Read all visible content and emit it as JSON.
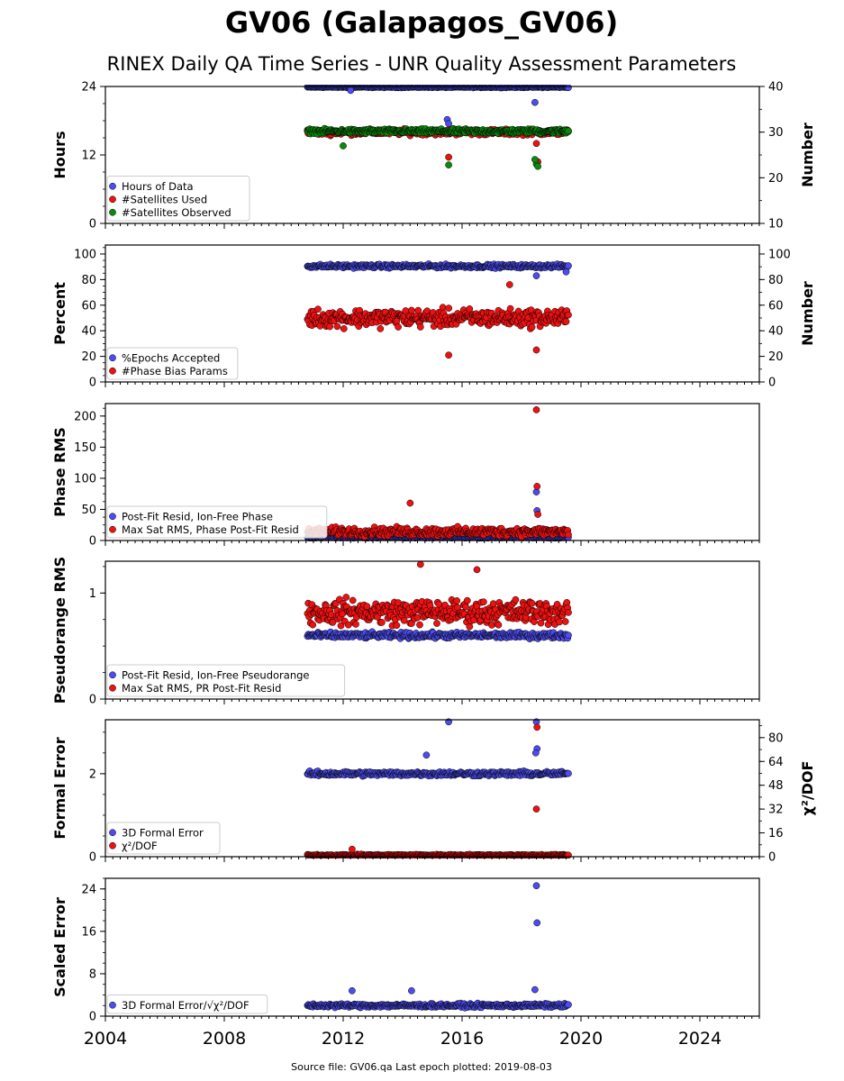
{
  "title": "GV06 (Galapagos_GV06)",
  "subtitle": "RINEX Daily QA Time Series - UNR Quality Assessment Parameters",
  "footer": "Source file: GV06.qa Last epoch plotted: 2019-08-03",
  "colors": {
    "blue": "#4c4cf0",
    "red": "#ee1111",
    "green": "#0a8a0a",
    "edge": "#000000"
  },
  "chart_data": [
    {
      "type": "scatter",
      "ylabel": "Hours",
      "ylabel_right": "Number",
      "xlim": [
        2004,
        2026
      ],
      "ylim": [
        0,
        24
      ],
      "yticks": [
        0,
        12,
        24
      ],
      "y2lim": [
        10,
        40
      ],
      "y2ticks": [
        10,
        20,
        30,
        40
      ],
      "xticks": [
        "2004",
        "2008",
        "2012",
        "2016",
        "2020",
        "2024"
      ],
      "legend_position": "lower-left",
      "series": [
        {
          "name": "Hours of Data",
          "color": "blue",
          "axis": "left",
          "band": {
            "start": 2010.8,
            "end": 2019.58,
            "base": 23.9,
            "jitter": 0.15
          },
          "outliers": [
            [
              2012.25,
              23.3
            ],
            [
              2015.5,
              18.2
            ],
            [
              2015.55,
              17.5
            ],
            [
              2018.45,
              21.2
            ],
            [
              2018.5,
              16.0
            ]
          ]
        },
        {
          "name": "#Satellites Used",
          "color": "red",
          "axis": "right",
          "band": {
            "start": 2010.8,
            "end": 2019.58,
            "base": 30.0,
            "jitter": 0.9
          },
          "outliers": [
            [
              2015.55,
              24.5
            ],
            [
              2018.5,
              27.5
            ],
            [
              2018.55,
              23.5
            ]
          ]
        },
        {
          "name": "#Satellites Observed",
          "color": "green",
          "axis": "right",
          "band": {
            "start": 2010.8,
            "end": 2019.58,
            "base": 30.2,
            "jitter": 0.7
          },
          "outliers": [
            [
              2012.0,
              27.0
            ],
            [
              2015.55,
              22.8
            ],
            [
              2018.5,
              23.0
            ],
            [
              2018.55,
              22.5
            ],
            [
              2018.45,
              24.0
            ]
          ]
        }
      ]
    },
    {
      "type": "scatter",
      "ylabel": "Percent",
      "ylabel_right": "Number",
      "xlim": [
        2004,
        2026
      ],
      "ylim": [
        0,
        107
      ],
      "yticks": [
        0,
        20,
        40,
        60,
        80,
        100
      ],
      "y2lim": [
        0,
        107
      ],
      "y2ticks": [
        0,
        20,
        40,
        60,
        80,
        100
      ],
      "legend_position": "lower-left",
      "series": [
        {
          "name": "%Epochs Accepted",
          "color": "blue",
          "axis": "left",
          "band": {
            "start": 2010.8,
            "end": 2019.58,
            "base": 90.5,
            "jitter": 2.0
          },
          "outliers": [
            [
              2018.5,
              83.0
            ],
            [
              2019.5,
              86.0
            ]
          ]
        },
        {
          "name": "#Phase Bias Params",
          "color": "red",
          "axis": "right",
          "band": {
            "start": 2010.8,
            "end": 2019.58,
            "base": 50.0,
            "jitter": 10.0
          },
          "outliers": [
            [
              2015.55,
              21.0
            ],
            [
              2018.5,
              25.0
            ],
            [
              2017.6,
              76.0
            ]
          ]
        }
      ]
    },
    {
      "type": "scatter",
      "ylabel": "Phase RMS",
      "xlim": [
        2004,
        2026
      ],
      "ylim": [
        0,
        220
      ],
      "yticks": [
        0,
        50,
        100,
        150,
        200
      ],
      "legend_position": "lower-left",
      "series": [
        {
          "name": "Post-Fit Resid, Ion-Free Phase",
          "color": "blue",
          "axis": "left",
          "band": {
            "start": 2010.8,
            "end": 2019.58,
            "base": 5.0,
            "jitter": 1.5
          },
          "outliers": [
            [
              2018.5,
              78.0
            ],
            [
              2018.52,
              48.0
            ]
          ]
        },
        {
          "name": "Max Sat RMS, Phase Post-Fit Resid",
          "color": "red",
          "axis": "left",
          "band": {
            "start": 2010.8,
            "end": 2019.58,
            "base": 14.0,
            "jitter": 10.0
          },
          "outliers": [
            [
              2018.5,
              210.0
            ],
            [
              2018.52,
              87.0
            ],
            [
              2014.25,
              60.0
            ],
            [
              2018.55,
              42.0
            ]
          ]
        }
      ]
    },
    {
      "type": "scatter",
      "ylabel": "Pseudorange RMS",
      "xlim": [
        2004,
        2026
      ],
      "ylim": [
        0,
        1.3
      ],
      "yticks": [
        0,
        1
      ],
      "legend_position": "lower-left",
      "series": [
        {
          "name": "Post-Fit Resid, Ion-Free Pseudorange",
          "color": "blue",
          "axis": "left",
          "band": {
            "start": 2010.8,
            "end": 2019.58,
            "base": 0.6,
            "jitter": 0.04
          },
          "outliers": []
        },
        {
          "name": "Max Sat RMS, PR Post-Fit Resid",
          "color": "red",
          "axis": "left",
          "band": {
            "start": 2010.8,
            "end": 2019.58,
            "base": 0.82,
            "jitter": 0.17
          },
          "outliers": [
            [
              2014.6,
              1.27
            ],
            [
              2016.5,
              1.22
            ]
          ]
        }
      ]
    },
    {
      "type": "scatter",
      "ylabel": "Formal Error",
      "ylabel_right": "χ²/DOF",
      "xlim": [
        2004,
        2026
      ],
      "ylim": [
        0,
        3.3
      ],
      "yticks": [
        0,
        2
      ],
      "y2lim": [
        0,
        92
      ],
      "y2ticks": [
        0,
        16,
        32,
        48,
        64,
        80
      ],
      "legend_position": "lower-left",
      "series": [
        {
          "name": "3D Formal Error",
          "color": "blue",
          "axis": "left",
          "band": {
            "start": 2010.8,
            "end": 2019.58,
            "base": 2.0,
            "jitter": 0.08
          },
          "outliers": [
            [
              2015.55,
              3.25
            ],
            [
              2018.5,
              3.25
            ],
            [
              2018.52,
              2.6
            ],
            [
              2018.48,
              2.5
            ],
            [
              2014.8,
              2.45
            ]
          ]
        },
        {
          "name": "χ²/DOF",
          "color": "red",
          "axis": "right",
          "band": {
            "start": 2010.8,
            "end": 2019.58,
            "base": 1.0,
            "jitter": 0.8
          },
          "outliers": [
            [
              2018.5,
              32.0
            ],
            [
              2018.52,
              87.0
            ],
            [
              2012.3,
              5.0
            ]
          ]
        }
      ]
    },
    {
      "type": "scatter",
      "ylabel": "Scaled Error",
      "xlim": [
        2004,
        2026
      ],
      "ylim": [
        0,
        26
      ],
      "yticks": [
        0,
        8,
        16,
        24
      ],
      "legend_position": "lower-left",
      "series": [
        {
          "name": "3D Formal Error/√χ²/DOF",
          "color": "blue",
          "axis": "left",
          "band": {
            "start": 2010.8,
            "end": 2019.58,
            "base": 2.0,
            "jitter": 0.5
          },
          "outliers": [
            [
              2018.5,
              24.6
            ],
            [
              2018.52,
              17.6
            ],
            [
              2012.3,
              4.8
            ],
            [
              2014.3,
              4.8
            ],
            [
              2018.45,
              5.0
            ]
          ]
        }
      ]
    }
  ]
}
